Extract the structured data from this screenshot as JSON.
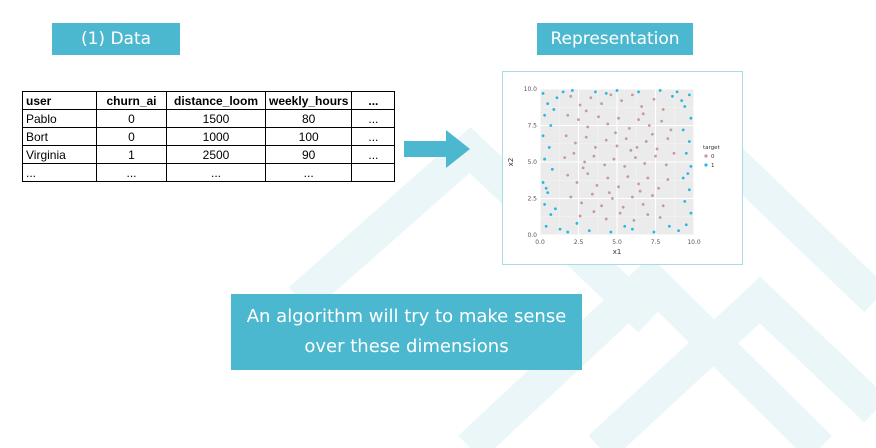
{
  "header": {
    "data_label": "(1) Data",
    "representation_label": "Representation"
  },
  "table": {
    "columns": [
      "user",
      "churn_ai",
      "distance_loom",
      "weekly_hours",
      "..."
    ],
    "rows": [
      [
        "Pablo",
        "0",
        "1500",
        "80",
        "..."
      ],
      [
        "Bort",
        "0",
        "1000",
        "100",
        "..."
      ],
      [
        "Virginia",
        "1",
        "2500",
        "90",
        "..."
      ],
      [
        "...",
        "...",
        "...",
        "...",
        ""
      ]
    ]
  },
  "callout": {
    "line1": "An algorithm will try to make sense",
    "line2": "over these dimensions"
  },
  "colors": {
    "accent": "#4cb8cf",
    "plot_panel": "#ebebeb",
    "class0": "#c49a9a",
    "class1": "#29b6e0"
  },
  "chart_data": {
    "type": "scatter",
    "xlabel": "x1",
    "ylabel": "x2",
    "xlim": [
      0,
      10
    ],
    "ylim": [
      0,
      10
    ],
    "x_ticks": [
      "0.0",
      "2.5",
      "5.0",
      "7.5",
      "10.0"
    ],
    "y_ticks": [
      "0.0",
      "2.5",
      "5.0",
      "7.5",
      "10.0"
    ],
    "grid": true,
    "legend": {
      "title": "target",
      "placement": "right",
      "entries": [
        {
          "label": "0",
          "color": "#c49a9a"
        },
        {
          "label": "1",
          "color": "#29b6e0"
        }
      ]
    },
    "series": [
      {
        "name": "0",
        "points": [
          [
            2.0,
            9.5
          ],
          [
            2.6,
            8.9
          ],
          [
            3.3,
            9.4
          ],
          [
            4.0,
            9.0
          ],
          [
            4.6,
            9.6
          ],
          [
            5.3,
            9.2
          ],
          [
            6.0,
            9.6
          ],
          [
            6.6,
            8.8
          ],
          [
            7.4,
            9.3
          ],
          [
            8.0,
            8.6
          ],
          [
            1.8,
            8.2
          ],
          [
            2.5,
            7.9
          ],
          [
            3.1,
            7.4
          ],
          [
            3.8,
            8.1
          ],
          [
            4.4,
            7.6
          ],
          [
            5.1,
            8.0
          ],
          [
            5.8,
            7.3
          ],
          [
            6.4,
            7.9
          ],
          [
            7.1,
            7.5
          ],
          [
            7.9,
            7.8
          ],
          [
            8.5,
            7.2
          ],
          [
            1.7,
            6.8
          ],
          [
            2.3,
            6.3
          ],
          [
            3.0,
            6.7
          ],
          [
            3.6,
            6.0
          ],
          [
            4.3,
            6.5
          ],
          [
            5.0,
            6.1
          ],
          [
            5.6,
            6.6
          ],
          [
            6.3,
            6.0
          ],
          [
            6.9,
            6.4
          ],
          [
            7.6,
            5.9
          ],
          [
            8.3,
            6.6
          ],
          [
            1.6,
            5.3
          ],
          [
            2.2,
            5.6
          ],
          [
            2.9,
            5.0
          ],
          [
            3.5,
            5.4
          ],
          [
            4.2,
            4.8
          ],
          [
            4.8,
            5.2
          ],
          [
            5.5,
            4.7
          ],
          [
            6.2,
            5.3
          ],
          [
            6.8,
            4.9
          ],
          [
            7.5,
            5.4
          ],
          [
            8.2,
            4.8
          ],
          [
            8.7,
            5.6
          ],
          [
            1.8,
            4.1
          ],
          [
            2.4,
            3.6
          ],
          [
            3.1,
            4.2
          ],
          [
            3.7,
            3.4
          ],
          [
            4.4,
            3.9
          ],
          [
            5.1,
            3.3
          ],
          [
            5.7,
            4.0
          ],
          [
            6.4,
            3.5
          ],
          [
            7.0,
            3.9
          ],
          [
            7.7,
            3.2
          ],
          [
            8.3,
            3.8
          ],
          [
            2.0,
            2.6
          ],
          [
            2.7,
            2.2
          ],
          [
            3.4,
            2.8
          ],
          [
            4.0,
            2.0
          ],
          [
            4.7,
            2.5
          ],
          [
            5.4,
            1.9
          ],
          [
            6.0,
            2.6
          ],
          [
            6.7,
            2.1
          ],
          [
            7.3,
            2.7
          ],
          [
            8.0,
            2.0
          ],
          [
            2.6,
            1.3
          ],
          [
            3.5,
            1.6
          ],
          [
            4.3,
            1.1
          ],
          [
            5.2,
            1.5
          ],
          [
            6.1,
            1.0
          ],
          [
            7.0,
            1.4
          ],
          [
            7.8,
            1.2
          ],
          [
            3.0,
            8.5
          ],
          [
            4.9,
            7.0
          ],
          [
            6.7,
            8.3
          ],
          [
            2.8,
            4.6
          ],
          [
            5.9,
            5.8
          ],
          [
            7.3,
            6.9
          ],
          [
            4.5,
            2.9
          ],
          [
            6.5,
            3.0
          ]
        ]
      },
      {
        "name": "1",
        "points": [
          [
            0.2,
            9.7
          ],
          [
            0.5,
            9.0
          ],
          [
            0.3,
            8.2
          ],
          [
            0.7,
            7.5
          ],
          [
            0.2,
            6.8
          ],
          [
            0.6,
            6.0
          ],
          [
            0.3,
            5.2
          ],
          [
            0.8,
            4.5
          ],
          [
            0.2,
            3.6
          ],
          [
            0.5,
            2.9
          ],
          [
            0.3,
            2.1
          ],
          [
            0.7,
            1.4
          ],
          [
            0.4,
            0.6
          ],
          [
            1.1,
            9.4
          ],
          [
            1.3,
            0.4
          ],
          [
            0.9,
            8.6
          ],
          [
            1.0,
            1.8
          ],
          [
            0.4,
            3.2
          ],
          [
            9.7,
            9.6
          ],
          [
            9.4,
            8.8
          ],
          [
            9.8,
            8.0
          ],
          [
            9.3,
            7.2
          ],
          [
            9.7,
            6.4
          ],
          [
            9.5,
            5.6
          ],
          [
            9.8,
            4.7
          ],
          [
            9.3,
            3.9
          ],
          [
            9.7,
            3.1
          ],
          [
            9.4,
            2.3
          ],
          [
            9.8,
            1.5
          ],
          [
            9.5,
            0.7
          ],
          [
            8.9,
            9.8
          ],
          [
            9.0,
            0.3
          ],
          [
            9.2,
            9.2
          ],
          [
            9.6,
            4.2
          ],
          [
            1.8,
            0.2
          ],
          [
            3.2,
            0.3
          ],
          [
            4.6,
            0.2
          ],
          [
            6.0,
            0.4
          ],
          [
            7.4,
            0.2
          ],
          [
            8.4,
            0.6
          ],
          [
            2.4,
            0.8
          ],
          [
            5.5,
            0.6
          ],
          [
            2.1,
            9.9
          ],
          [
            3.6,
            9.8
          ],
          [
            5.0,
            9.9
          ],
          [
            6.4,
            9.8
          ],
          [
            7.8,
            9.9
          ],
          [
            8.6,
            9.5
          ],
          [
            1.5,
            9.8
          ],
          [
            4.3,
            9.7
          ]
        ]
      }
    ]
  }
}
